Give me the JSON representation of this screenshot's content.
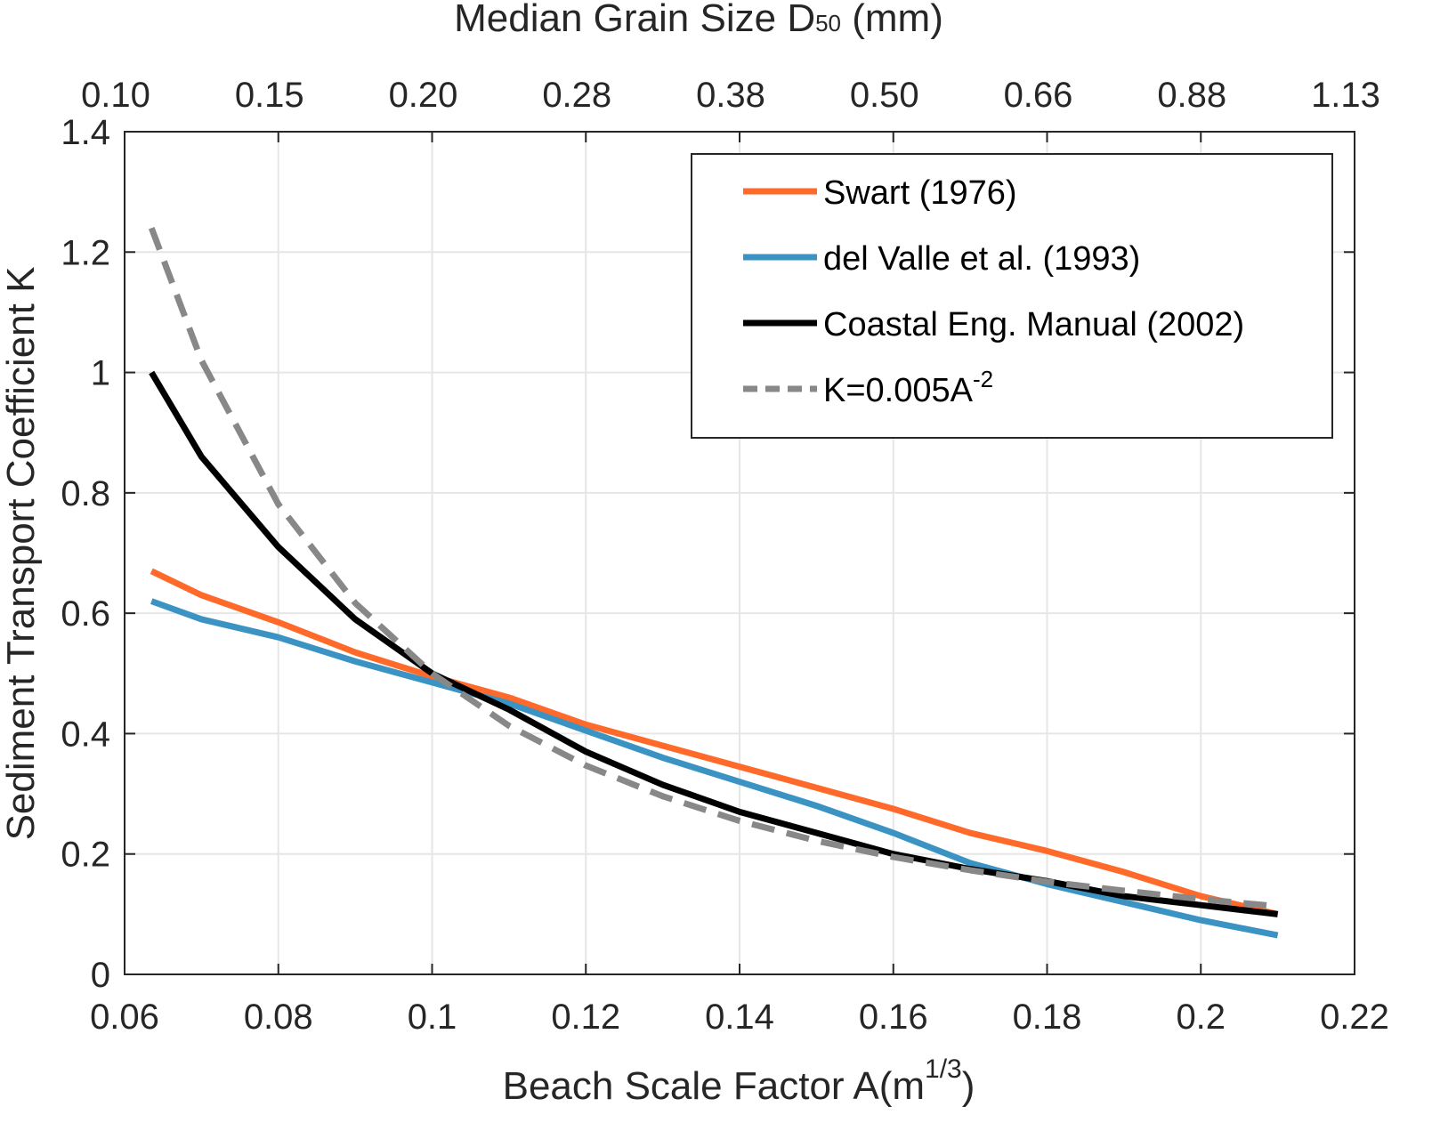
{
  "chart_data": {
    "type": "line",
    "title": "",
    "xlabel": "Beach Scale Factor A(m",
    "xlabel_sup": "1/3",
    "xlabel_end": ")",
    "ylabel": "Sediment Transport Coefficient K",
    "top_axis_label": "Median Grain Size D",
    "top_axis_label_sub": "50",
    "top_axis_label_end": " (mm)",
    "xlim": [
      0.06,
      0.22
    ],
    "ylim": [
      0,
      1.4
    ],
    "grid": true,
    "legend_position": "top-right",
    "x_ticks": [
      "0.06",
      "0.08",
      "0.1",
      "0.12",
      "0.14",
      "0.16",
      "0.18",
      "0.2",
      "0.22"
    ],
    "x_tick_values": [
      0.06,
      0.08,
      0.1,
      0.12,
      0.14,
      0.16,
      0.18,
      0.2,
      0.22
    ],
    "y_ticks": [
      "0",
      "0.2",
      "0.4",
      "0.6",
      "0.8",
      "1",
      "1.2",
      "1.4"
    ],
    "y_tick_values": [
      0,
      0.2,
      0.4,
      0.6,
      0.8,
      1,
      1.2,
      1.4
    ],
    "top_ticks": [
      "0.10",
      "0.15",
      "0.20",
      "0.28",
      "0.38",
      "0.50",
      "0.66",
      "0.88",
      "1.13"
    ],
    "x": [
      0.0635,
      0.07,
      0.08,
      0.09,
      0.1,
      0.11,
      0.12,
      0.13,
      0.14,
      0.15,
      0.16,
      0.17,
      0.18,
      0.19,
      0.2,
      0.21
    ],
    "series": [
      {
        "name": "Swart (1976)",
        "color": "#ff6a2a",
        "dash": false,
        "values": [
          0.67,
          0.63,
          0.585,
          0.535,
          0.495,
          0.46,
          0.415,
          0.38,
          0.345,
          0.31,
          0.275,
          0.235,
          0.205,
          0.17,
          0.13,
          0.1
        ]
      },
      {
        "name": "del Valle et al. (1993)",
        "color": "#3a93c3",
        "dash": false,
        "values": [
          0.62,
          0.59,
          0.56,
          0.52,
          0.485,
          0.45,
          0.405,
          0.36,
          0.32,
          0.28,
          0.235,
          0.185,
          0.15,
          0.12,
          0.09,
          0.065
        ]
      },
      {
        "name": "Coastal Eng. Manual (2002)",
        "color": "#000000",
        "dash": false,
        "values": [
          1.0,
          0.86,
          0.71,
          0.59,
          0.5,
          0.44,
          0.37,
          0.315,
          0.27,
          0.235,
          0.2,
          0.175,
          0.155,
          0.13,
          0.115,
          0.1
        ]
      },
      {
        "name": "K=0.005A",
        "name_sup": "-2",
        "color": "#888888",
        "dash": true,
        "values": [
          1.24,
          1.02,
          0.781,
          0.617,
          0.5,
          0.413,
          0.347,
          0.296,
          0.255,
          0.222,
          0.195,
          0.173,
          0.154,
          0.139,
          0.125,
          0.113
        ]
      }
    ]
  }
}
